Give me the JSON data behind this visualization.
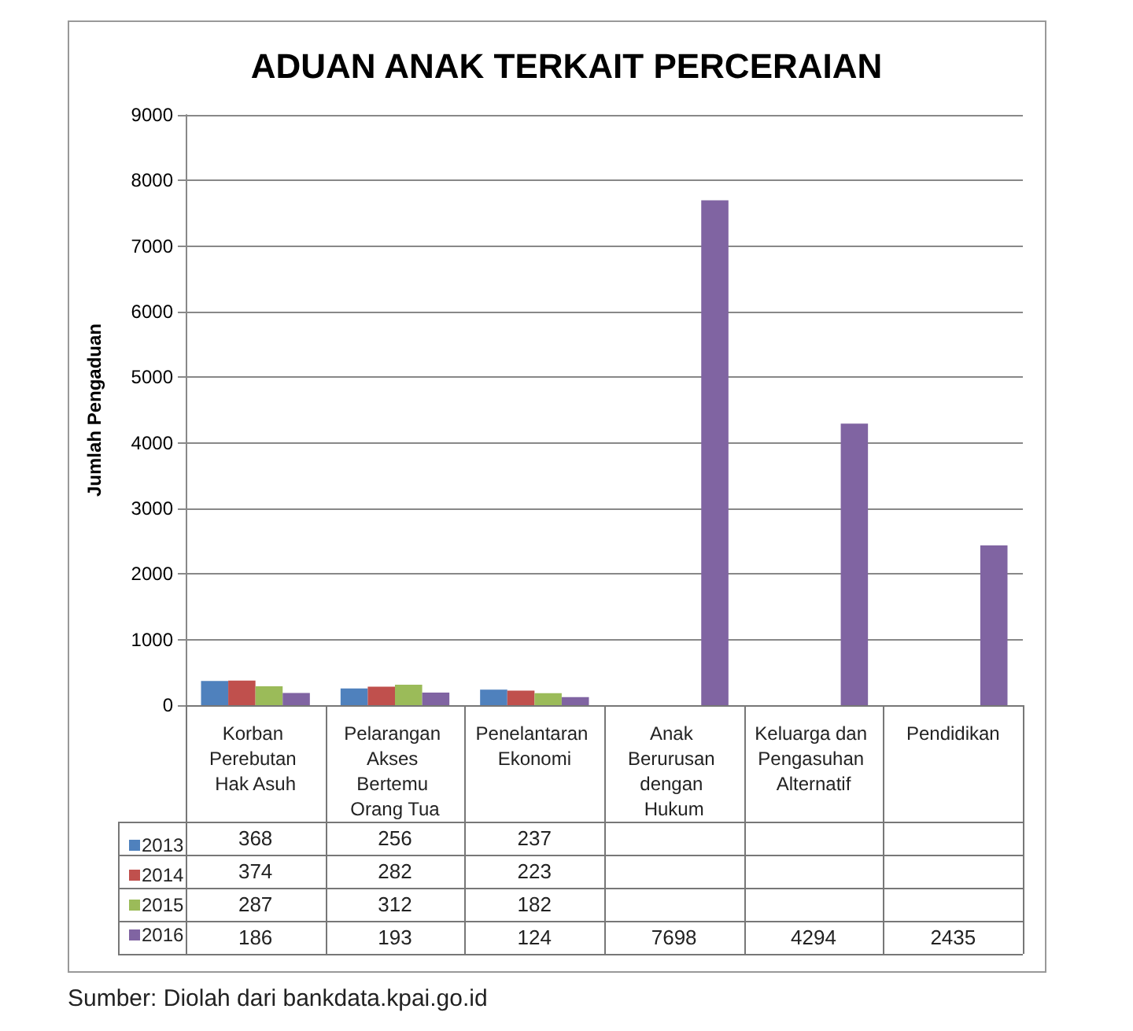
{
  "chart_data": {
    "type": "bar",
    "title": "ADUAN ANAK TERKAIT PERCERAIAN",
    "ylabel": "Jumlah Pengaduan",
    "categories": [
      "Korban Perebutan Hak Asuh",
      "Pelarangan Akses Bertemu Orang Tua",
      "Penelantaran Ekonomi",
      "Anak Berurusan dengan Hukum",
      "Keluarga dan Pengasuhan Alternatif",
      "Pendidikan"
    ],
    "series": [
      {
        "name": "2013",
        "color": "#4f81bd",
        "values": [
          368,
          256,
          237,
          null,
          null,
          null
        ]
      },
      {
        "name": "2014",
        "color": "#c0504d",
        "values": [
          374,
          282,
          223,
          null,
          null,
          null
        ]
      },
      {
        "name": "2015",
        "color": "#9bbb59",
        "values": [
          287,
          312,
          182,
          null,
          null,
          null
        ]
      },
      {
        "name": "2016",
        "color": "#8064a2",
        "values": [
          186,
          193,
          124,
          7698,
          4294,
          2435
        ]
      }
    ],
    "ylim": [
      0,
      9000
    ],
    "yticks": [
      0,
      1000,
      2000,
      3000,
      4000,
      5000,
      6000,
      7000,
      8000,
      9000
    ],
    "grid": "y",
    "legend": "bottom left",
    "data_labels": true,
    "annotations": [
      "Sumber: Diolah dari bankdata.kpai.go.id"
    ]
  }
}
